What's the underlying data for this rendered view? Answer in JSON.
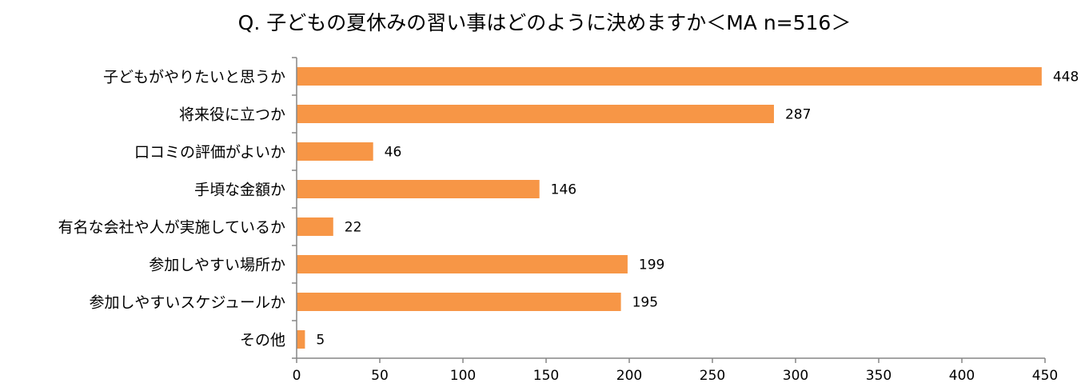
{
  "chart_data": {
    "type": "bar",
    "orientation": "horizontal",
    "title": "Q. 子どもの夏休みの習い事はどのように決めますか＜MA n=516＞",
    "categories": [
      "子どもがやりたいと思うか",
      "将来役に立つか",
      "口コミの評価がよいか",
      "手頃な金額か",
      "有名な会社や人が実施しているか",
      "参加しやすい場所か",
      "参加しやすいスケジュールか",
      "その他"
    ],
    "values": [
      448,
      287,
      46,
      146,
      22,
      199,
      195,
      5
    ],
    "xlim": [
      0,
      450
    ],
    "xticks": [
      0,
      50,
      100,
      150,
      200,
      250,
      300,
      350,
      400,
      450
    ],
    "grid": false,
    "legend": "none",
    "bar_color": "#F79646",
    "axis_color": "#868686"
  }
}
